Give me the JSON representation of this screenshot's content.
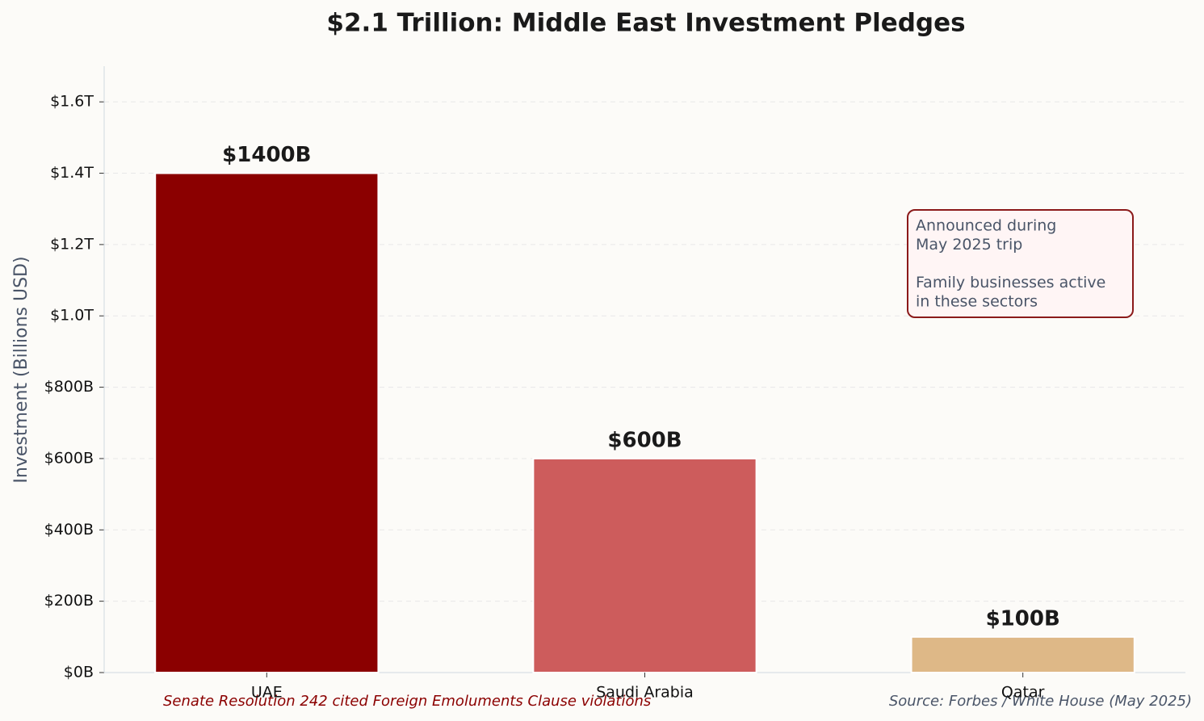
{
  "chart_data": {
    "type": "bar",
    "title": "$2.1 Trillion: Middle East Investment Pledges",
    "y_label": "Investment (Billions USD)",
    "categories": [
      "UAE",
      "Saudi Arabia",
      "Qatar"
    ],
    "values": [
      1400,
      600,
      100
    ],
    "value_labels": [
      "$1400B",
      "$600B",
      "$100B"
    ],
    "colors": [
      "#8b0000",
      "#cd5c5c",
      "#deb887"
    ],
    "ylim": [
      0,
      1700
    ],
    "yticks": [
      {
        "value": 0,
        "label": "$0B"
      },
      {
        "value": 200,
        "label": "$200B"
      },
      {
        "value": 400,
        "label": "$400B"
      },
      {
        "value": 600,
        "label": "$600B"
      },
      {
        "value": 800,
        "label": "$800B"
      },
      {
        "value": 1000,
        "label": "$1.0T"
      },
      {
        "value": 1200,
        "label": "$1.2T"
      },
      {
        "value": 1400,
        "label": "$1.4T"
      },
      {
        "value": 1600,
        "label": "$1.6T"
      }
    ],
    "grid": true,
    "annotation": [
      [
        "Announced during",
        "May 2025 trip"
      ],
      [
        "Family businesses active",
        "in these sectors"
      ]
    ],
    "footnote": "Senate Resolution 242 cited Foreign Emoluments Clause violations",
    "source": "Source: Forbes / White House (May 2025)"
  }
}
